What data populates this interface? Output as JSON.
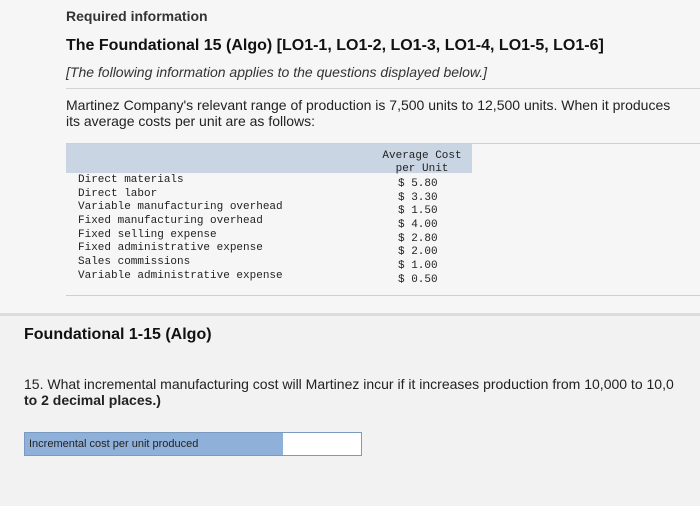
{
  "header": {
    "required_information": "Required information",
    "title": "The Foundational 15 (Algo) [LO1-1, LO1-2, LO1-3, LO1-4, LO1-5, LO1-6]",
    "note": "[The following information applies to the questions displayed below.]"
  },
  "intro": {
    "line1": "Martinez Company's relevant range of production is 7,500 units to 12,500 units. When it produces",
    "line2": "its average costs per unit are as follows:"
  },
  "cost_table": {
    "column_header": [
      "Average Cost",
      "per Unit"
    ],
    "rows": [
      {
        "label": "Direct materials",
        "value": "$ 5.80"
      },
      {
        "label": "Direct labor",
        "value": "$ 3.30"
      },
      {
        "label": "Variable manufacturing overhead",
        "value": "$ 1.50"
      },
      {
        "label": "Fixed manufacturing overhead",
        "value": "$ 4.00"
      },
      {
        "label": "Fixed selling expense",
        "value": "$ 2.80"
      },
      {
        "label": "Fixed administrative expense",
        "value": "$ 2.00"
      },
      {
        "label": "Sales commissions",
        "value": "$ 1.00"
      },
      {
        "label": "Variable administrative expense",
        "value": "$ 0.50"
      }
    ]
  },
  "foundational": {
    "title": "Foundational 1-15 (Algo)",
    "question_line1": "15. What incremental manufacturing cost will Martinez incur if it increases production from 10,000 to 10,0",
    "question_line2_bold": "to 2 decimal places.)"
  },
  "answer": {
    "label": "Incremental cost per unit produced",
    "value": ""
  },
  "colors": {
    "table_band": "#c9d5e3",
    "answer_label_bg": "#8fb1d9",
    "answer_border": "#7a9ac0"
  }
}
